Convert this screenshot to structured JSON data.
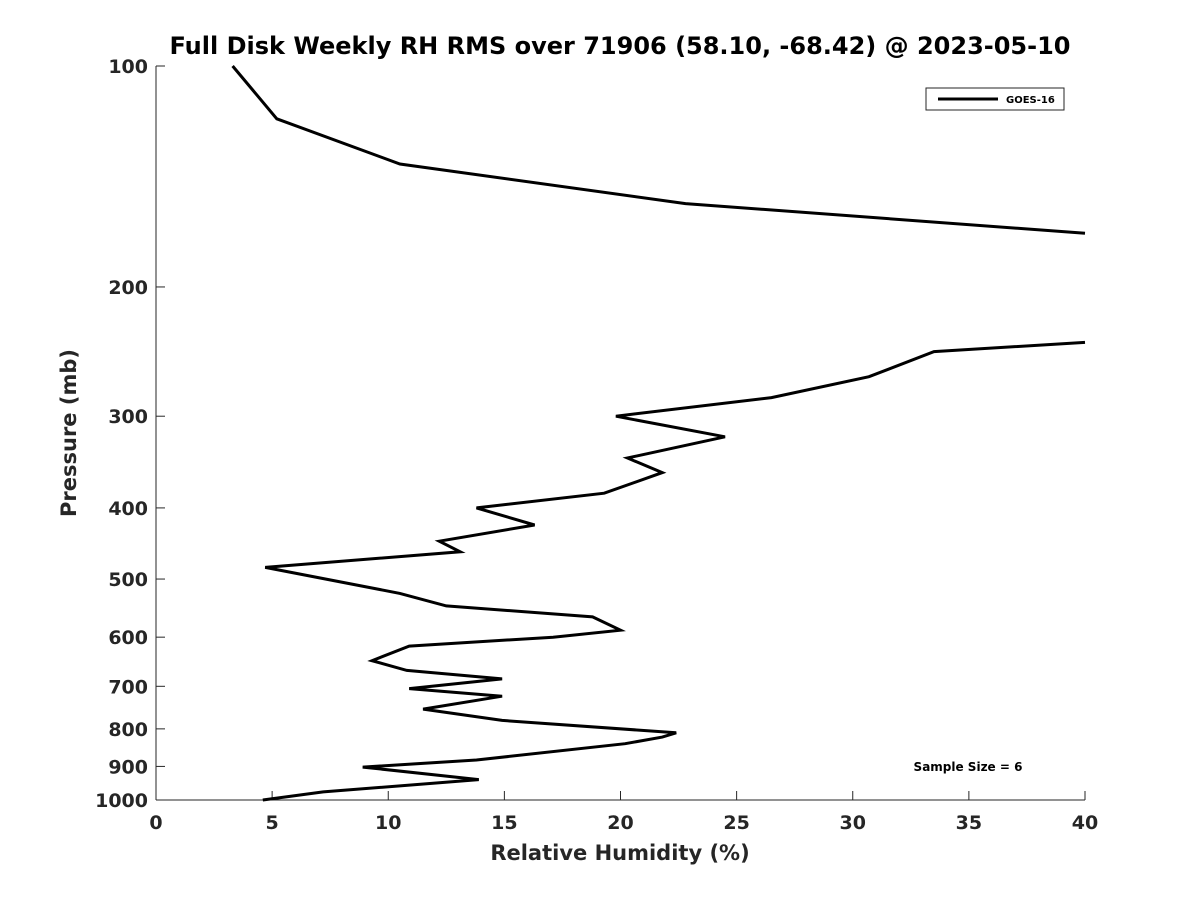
{
  "chart_data": {
    "type": "line",
    "title": "Full Disk Weekly RH RMS over 71906 (58.10, -68.42) @ 2023-05-10",
    "xlabel": "Relative Humidity (%)",
    "ylabel": "Pressure (mb)",
    "xlim": [
      0,
      40
    ],
    "ylim": [
      100,
      1000
    ],
    "y_scale": "log",
    "y_reversed": true,
    "xticks": [
      0,
      5,
      10,
      15,
      20,
      25,
      30,
      35,
      40
    ],
    "yticks": [
      100,
      200,
      300,
      400,
      500,
      600,
      700,
      800,
      900,
      1000
    ],
    "grid": false,
    "legend_position": "top-right",
    "annotation": "Sample Size = 6",
    "series": [
      {
        "name": "GOES-16",
        "color": "#000000",
        "segments": [
          [
            {
              "x": 3.3,
              "y": 100
            },
            {
              "x": 5.2,
              "y": 118
            },
            {
              "x": 10.5,
              "y": 136
            },
            {
              "x": 22.8,
              "y": 154
            },
            {
              "x": 40.0,
              "y": 169
            }
          ],
          [
            {
              "x": 40.0,
              "y": 238
            },
            {
              "x": 33.5,
              "y": 245
            },
            {
              "x": 30.7,
              "y": 265
            },
            {
              "x": 26.5,
              "y": 283
            },
            {
              "x": 19.8,
              "y": 300
            },
            {
              "x": 24.5,
              "y": 320
            },
            {
              "x": 20.3,
              "y": 342
            },
            {
              "x": 21.8,
              "y": 358
            },
            {
              "x": 19.3,
              "y": 382
            },
            {
              "x": 13.8,
              "y": 400
            },
            {
              "x": 16.3,
              "y": 422
            },
            {
              "x": 12.2,
              "y": 444
            },
            {
              "x": 13.1,
              "y": 459
            },
            {
              "x": 4.7,
              "y": 482
            },
            {
              "x": 10.5,
              "y": 523
            },
            {
              "x": 12.5,
              "y": 544
            },
            {
              "x": 18.8,
              "y": 563
            },
            {
              "x": 20.0,
              "y": 587
            },
            {
              "x": 17.1,
              "y": 600
            },
            {
              "x": 10.9,
              "y": 617
            },
            {
              "x": 9.3,
              "y": 646
            },
            {
              "x": 10.8,
              "y": 666
            },
            {
              "x": 14.9,
              "y": 684
            },
            {
              "x": 10.9,
              "y": 705
            },
            {
              "x": 14.9,
              "y": 722
            },
            {
              "x": 11.5,
              "y": 752
            },
            {
              "x": 14.9,
              "y": 779
            },
            {
              "x": 22.4,
              "y": 810
            },
            {
              "x": 21.8,
              "y": 821
            },
            {
              "x": 20.2,
              "y": 838
            },
            {
              "x": 13.8,
              "y": 882
            },
            {
              "x": 8.9,
              "y": 902
            },
            {
              "x": 13.9,
              "y": 938
            },
            {
              "x": 7.2,
              "y": 975
            },
            {
              "x": 4.6,
              "y": 1000
            }
          ]
        ]
      }
    ]
  }
}
